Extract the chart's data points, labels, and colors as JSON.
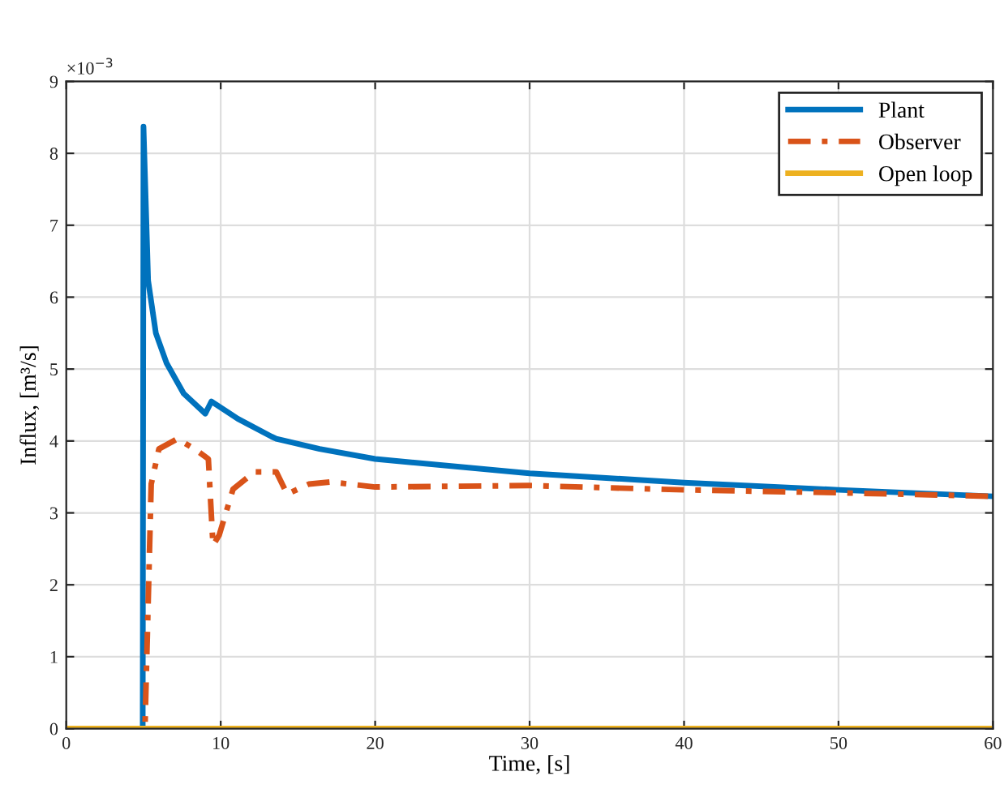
{
  "chart_data": {
    "type": "line",
    "xlabel": "Time, [s]",
    "ylabel": "Influx, [m³/s]",
    "annotations": [
      "×10$^{−3}$"
    ],
    "xlim": [
      0,
      60
    ],
    "xticks": [
      0,
      10,
      20,
      30,
      40,
      50,
      60
    ],
    "ylim": [
      0,
      9
    ],
    "yticks": [
      0,
      1,
      2,
      3,
      4,
      5,
      6,
      7,
      8,
      9
    ],
    "grid": true,
    "legend": "top right",
    "series": [
      {
        "name": "Plant",
        "color": "#0072bd",
        "line_style": "solid",
        "x": [
          0,
          4.95,
          5.0,
          5.3,
          5.8,
          6.5,
          7.6,
          9.0,
          9.4,
          11.1,
          13.3,
          13.6,
          16.4,
          20,
          30,
          40,
          50,
          60
        ],
        "values": [
          0,
          0,
          8.37,
          6.23,
          5.5,
          5.08,
          4.66,
          4.38,
          4.55,
          4.31,
          4.06,
          4.03,
          3.89,
          3.75,
          3.55,
          3.42,
          3.32,
          3.23
        ]
      },
      {
        "name": "Observer",
        "color": "#d95319",
        "line_style": "dashed",
        "x": [
          0,
          5.0,
          5.1,
          5.5,
          6.0,
          7.2,
          8.3,
          9.2,
          9.5,
          9.9,
          10.8,
          12.2,
          13.6,
          14.3,
          15.7,
          17.1,
          20,
          30,
          40,
          50,
          60
        ],
        "values": [
          0,
          0,
          0.04,
          3.4,
          3.89,
          4.03,
          3.89,
          3.75,
          2.55,
          2.69,
          3.33,
          3.57,
          3.57,
          3.26,
          3.4,
          3.43,
          3.36,
          3.38,
          3.32,
          3.28,
          3.23
        ]
      },
      {
        "name": "Open loop",
        "color": "#edb120",
        "line_style": "solid",
        "x": [
          0,
          60
        ],
        "values": [
          0,
          0
        ]
      }
    ]
  }
}
